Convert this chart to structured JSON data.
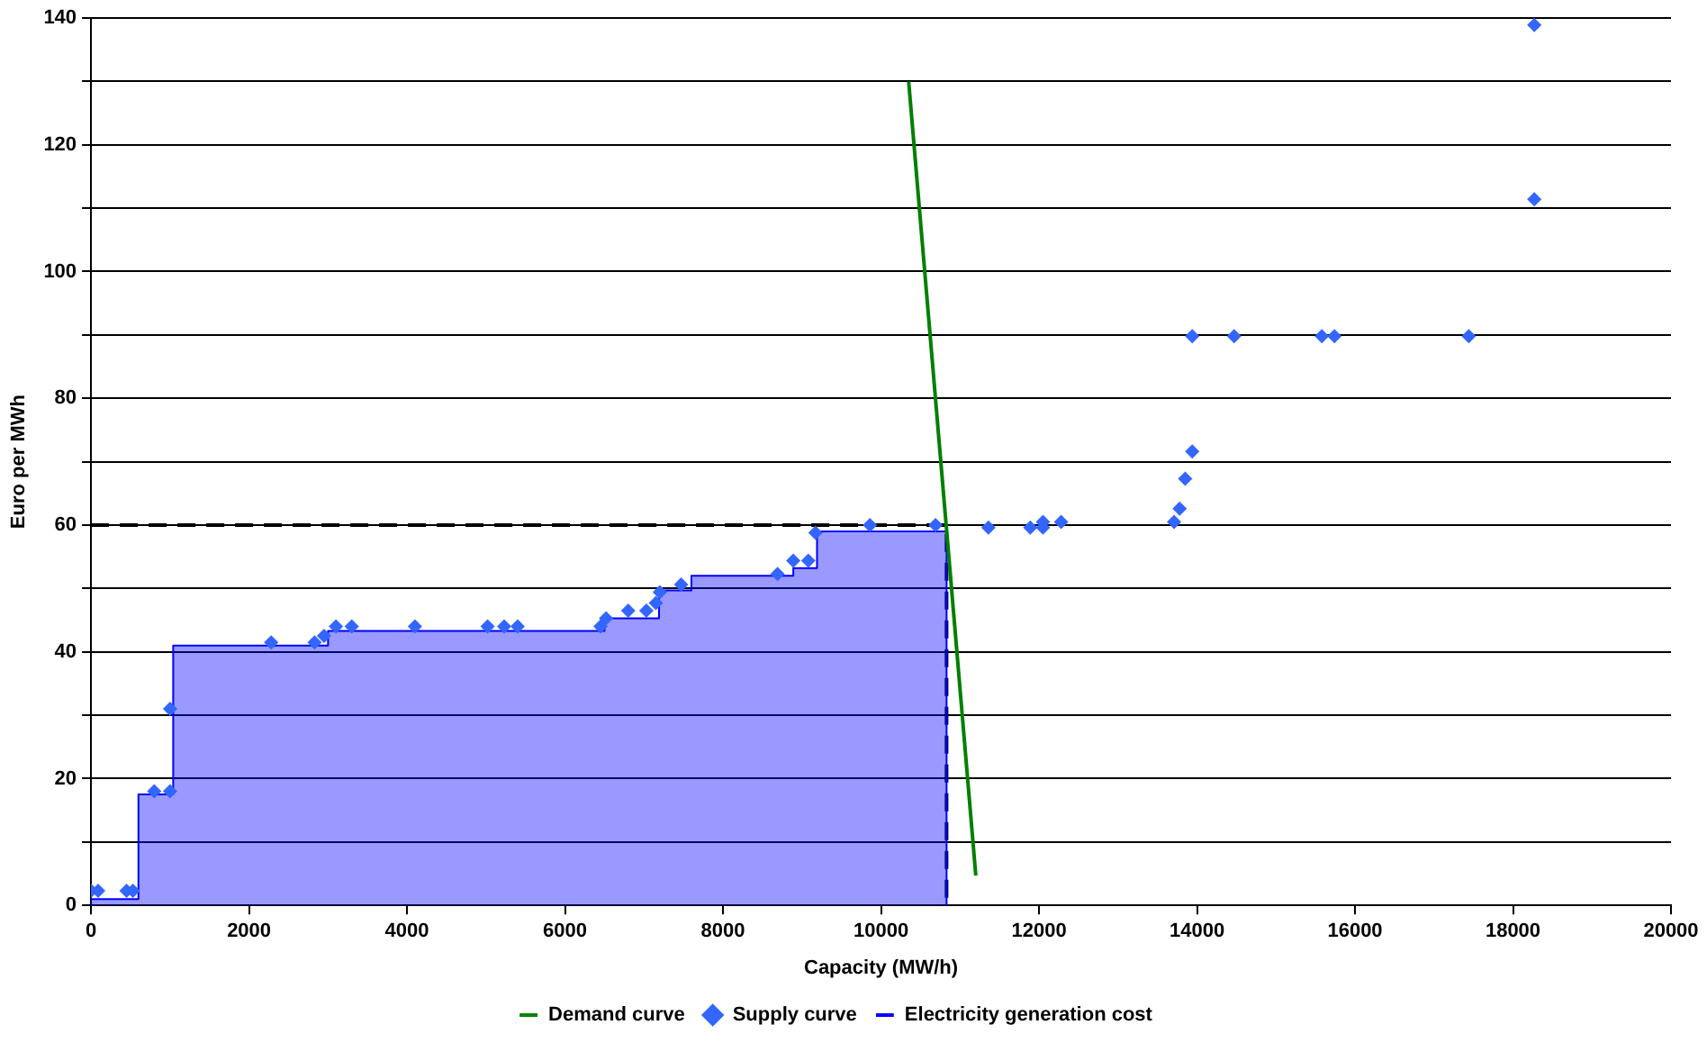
{
  "chart_data": {
    "type": "scatter",
    "xlabel": "Capacity (MW/h)",
    "ylabel": "Euro per MWh",
    "xlim": [
      0,
      20000
    ],
    "xticks": [
      0,
      2000,
      4000,
      6000,
      8000,
      10000,
      12000,
      14000,
      16000,
      18000,
      20000
    ],
    "ylim": [
      0,
      140
    ],
    "yticks": [
      0,
      {
        "value": 10,
        "label": null
      },
      20,
      {
        "value": 30,
        "label": null
      },
      40,
      {
        "value": 50,
        "label": null
      },
      60,
      {
        "value": 70,
        "label": null
      },
      80,
      {
        "value": 90,
        "label": null
      },
      100,
      {
        "value": 110,
        "label": null
      },
      120,
      {
        "value": 130,
        "label": null
      },
      140
    ],
    "grid": "y",
    "legend": "bottom",
    "marker": "diamond",
    "series": [
      {
        "name": "Demand curve",
        "type": "line",
        "color": "#008000",
        "marker": "none",
        "x": [
          10350,
          11200
        ],
        "values": [
          130,
          4.7
        ]
      },
      {
        "name": "Supply curve",
        "type": "scatter",
        "color": "#3366ff",
        "x": [
          0,
          90,
          450,
          530,
          800,
          1000,
          1000,
          2280,
          2830,
          2950,
          3100,
          3300,
          4100,
          5020,
          5230,
          5400,
          6450,
          6520,
          6800,
          7030,
          7150,
          7200,
          7470,
          8690,
          8890,
          9080,
          9170,
          9860,
          10690,
          11360,
          11890,
          12050,
          12050,
          12280,
          13710,
          13780,
          13850,
          13940,
          13940,
          14470,
          15580,
          15740,
          17440,
          18270,
          18270
        ],
        "values": [
          2.3,
          2.3,
          2.3,
          2.3,
          18,
          18,
          31,
          41.5,
          41.5,
          42.5,
          44,
          44,
          44,
          44,
          44,
          44,
          44,
          45.3,
          46.5,
          46.5,
          47.7,
          49.4,
          50.6,
          52.3,
          54.4,
          54.4,
          58.8,
          60,
          60,
          59.6,
          59.6,
          59.6,
          60.5,
          60.5,
          60.5,
          62.6,
          67.3,
          71.6,
          89.8,
          89.8,
          89.8,
          89.8,
          89.8,
          138.9,
          111.4
        ]
      },
      {
        "name": "Electricity generation cost",
        "type": "area",
        "color": "#0000ff",
        "marker": "none",
        "x": [
          0,
          0,
          600,
          600,
          1040,
          1040,
          3000,
          3000,
          6500,
          6500,
          7190,
          7190,
          7600,
          7600,
          8890,
          8890,
          9190,
          9190,
          10830,
          10830
        ],
        "values": [
          0,
          1,
          1,
          17.5,
          17.5,
          41,
          41,
          43.3,
          43.3,
          45.3,
          45.3,
          49.7,
          49.7,
          52,
          52,
          53.2,
          53.2,
          59,
          59,
          0
        ]
      },
      {
        "type": "line",
        "color": "#000000",
        "marker": "none",
        "line_style": "dashed",
        "x": [
          0,
          10830,
          10830
        ],
        "values": [
          60,
          60,
          0
        ]
      }
    ]
  }
}
